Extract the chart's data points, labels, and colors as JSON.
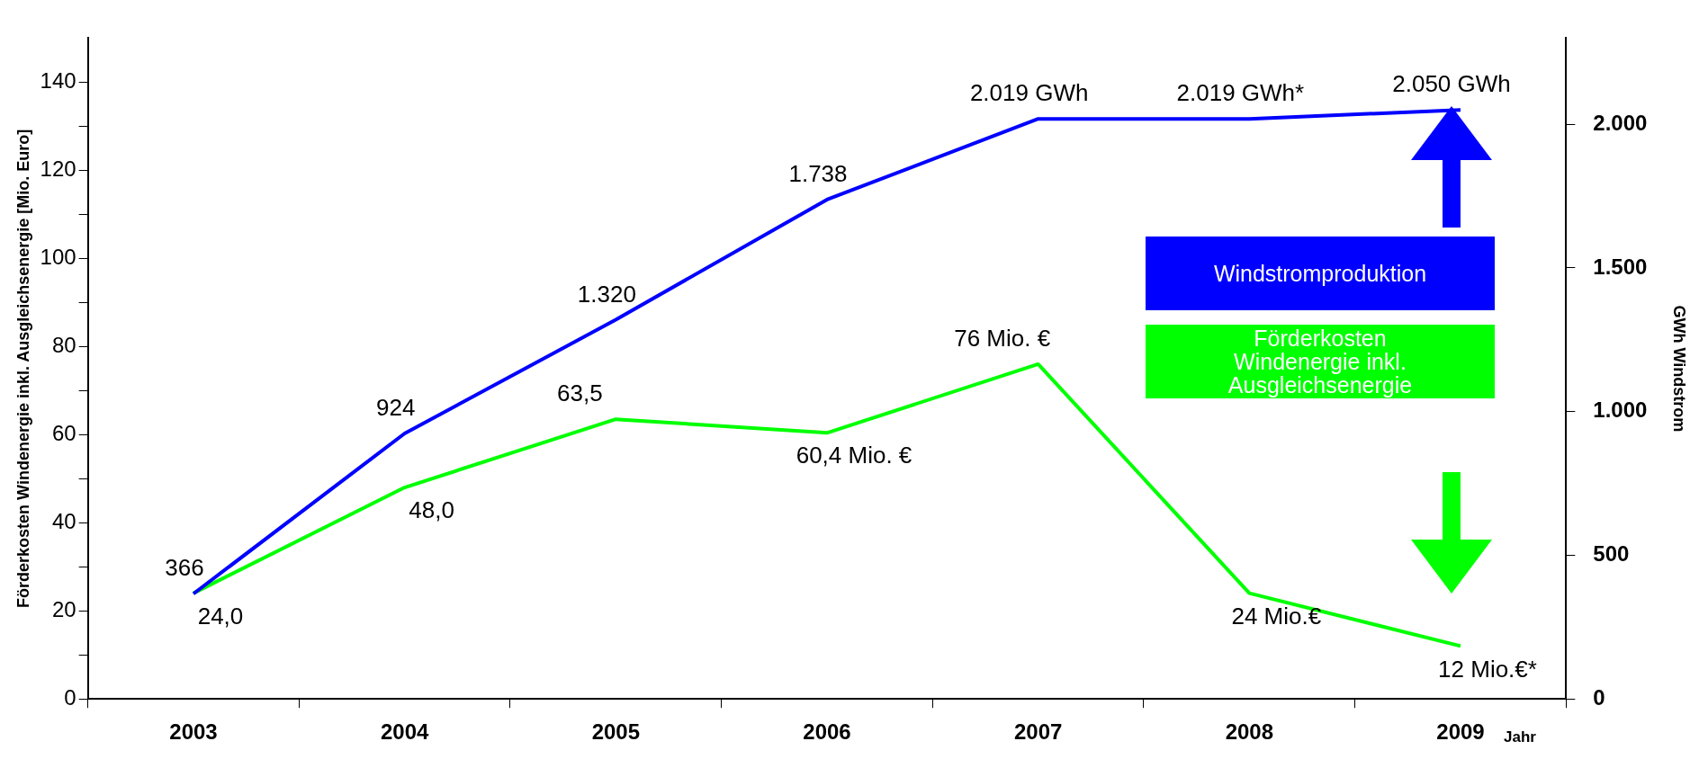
{
  "chart_data": {
    "type": "line",
    "xlabel": "Jahr",
    "ylabel": "Förderkosten Windenergie inkl. Ausgleichsenergie [Mio. Euro]",
    "y2label": "GWh Windstrom",
    "categories": [
      "2003",
      "2004",
      "2005",
      "2006",
      "2007",
      "2008",
      "2009"
    ],
    "series": [
      {
        "name": "Windstromproduktion",
        "color": "#0000ff",
        "axis": "y2",
        "values": [
          366,
          924,
          1320,
          1738,
          2019,
          2019,
          2050
        ],
        "value_labels": [
          "366",
          "924",
          "1.320",
          "1.738",
          "2.019 GWh",
          "2.019 GWh*",
          "2.050 GWh"
        ]
      },
      {
        "name": "Förderkosten Windenergie inkl. Ausgleichsenergie",
        "color": "#00ff00",
        "values": [
          24,
          48,
          63.5,
          60.4,
          76,
          24,
          12
        ],
        "value_labels": [
          "24,0",
          "48,0",
          "63,5",
          "60,4 Mio. €",
          "76 Mio. €",
          "24 Mio.€",
          "12 Mio.€*"
        ]
      }
    ],
    "ylim": [
      0,
      150
    ],
    "yticks": [
      0,
      {
        "value": 10,
        "label": null
      },
      20,
      {
        "value": 30,
        "label": null
      },
      40,
      {
        "value": 50,
        "label": null
      },
      60,
      {
        "value": 70,
        "label": null
      },
      80,
      {
        "value": 90,
        "label": null
      },
      100,
      {
        "value": 110,
        "label": null
      },
      120,
      {
        "value": 130,
        "label": null
      },
      140
    ],
    "y2lim": [
      0,
      2300
    ],
    "y2ticks": [
      0,
      500,
      {
        "value": 1000,
        "label": "1.000"
      },
      {
        "value": 1500,
        "label": "1.500"
      },
      {
        "value": 2000,
        "label": "2.000"
      }
    ],
    "grid": false,
    "legend": "right",
    "marker": "none",
    "line_style": "solid"
  }
}
